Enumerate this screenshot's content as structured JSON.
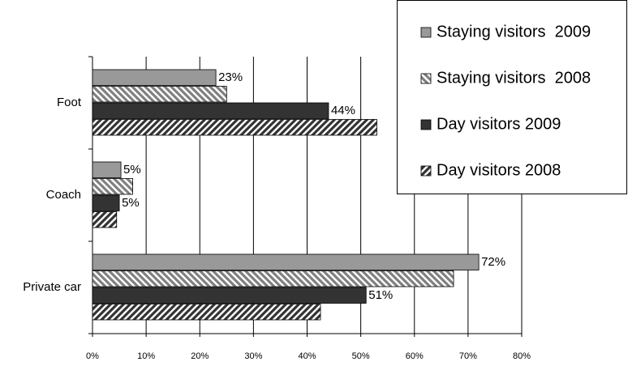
{
  "chart_data": {
    "type": "hbar",
    "categories": [
      "Foot",
      "Coach",
      "Private car"
    ],
    "series": [
      {
        "name": "Staying visitors  2009",
        "color": "#999999",
        "pattern": "solid",
        "values": [
          23,
          5.3,
          72
        ],
        "value_labels": [
          "23%",
          "5%",
          "72%"
        ]
      },
      {
        "name": "Staying visitors  2008",
        "color": "#808080",
        "pattern": "backslash",
        "values": [
          25,
          7.5,
          67.3
        ],
        "value_labels": [
          null,
          null,
          null
        ]
      },
      {
        "name": "Day visitors 2009",
        "color": "#333333",
        "pattern": "solid",
        "values": [
          44,
          5,
          51
        ],
        "value_labels": [
          "44%",
          "5%",
          "51%"
        ]
      },
      {
        "name": "Day visitors 2008",
        "color": "#333333",
        "pattern": "slash",
        "values": [
          53,
          4.5,
          42.5
        ],
        "value_labels": [
          null,
          null,
          null
        ]
      }
    ],
    "xlim": [
      0,
      80
    ],
    "xticks": [
      {
        "value": 0,
        "label": "0%"
      },
      {
        "value": 10,
        "label": "10%"
      },
      {
        "value": 20,
        "label": "20%"
      },
      {
        "value": 30,
        "label": "30%"
      },
      {
        "value": 40,
        "label": "40%"
      },
      {
        "value": 50,
        "label": "50%"
      },
      {
        "value": 60,
        "label": "60%"
      },
      {
        "value": 70,
        "label": "70%"
      },
      {
        "value": 80,
        "label": "80%"
      }
    ],
    "grid": true,
    "legend": "top-right"
  }
}
